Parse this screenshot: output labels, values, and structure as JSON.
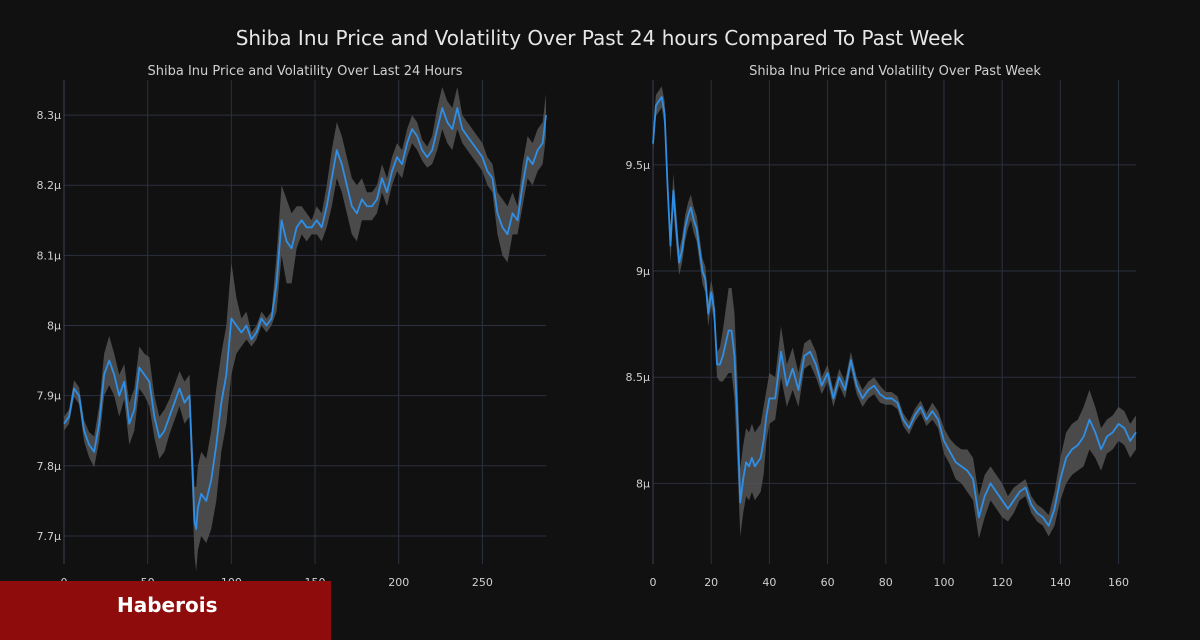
{
  "title": "Shiba Inu Price and Volatility Over Past 24 hours Compared To Past Week",
  "brand": {
    "name": "Haberois"
  },
  "colors": {
    "background": "#111111",
    "line": "#2f8fe6",
    "band": "#555555",
    "grid": "#2c3140",
    "text": "#d0d0d0"
  },
  "chart_data": [
    {
      "type": "line",
      "title": "Shiba Inu Price and Volatility Over Last 24 Hours",
      "xlim": [
        0,
        288
      ],
      "ylim": [
        7.66,
        8.35
      ],
      "xticks": [
        0,
        50,
        100,
        150,
        200,
        250
      ],
      "xtick_labels": [
        "0",
        "50",
        "100",
        "150",
        "200",
        "250"
      ],
      "yticks": [
        7.7,
        7.8,
        7.9,
        8.0,
        8.1,
        8.2,
        8.3
      ],
      "ytick_labels": [
        "7.7µ",
        "7.8µ",
        "7.9µ",
        "8µ",
        "8.1µ",
        "8.2µ",
        "8.3µ"
      ],
      "grid": true,
      "series": [
        {
          "x": [
            0,
            3,
            6,
            9,
            12,
            15,
            18,
            21,
            24,
            27,
            30,
            33,
            36,
            39,
            42,
            45,
            48,
            51,
            54,
            57,
            60,
            63,
            66,
            69,
            72,
            75,
            78,
            79,
            80,
            82,
            85,
            88,
            91,
            94,
            97,
            100,
            103,
            106,
            109,
            112,
            115,
            118,
            121,
            124,
            127,
            130,
            133,
            136,
            139,
            142,
            145,
            148,
            151,
            154,
            157,
            160,
            163,
            166,
            169,
            172,
            175,
            178,
            181,
            184,
            187,
            190,
            193,
            196,
            199,
            202,
            205,
            208,
            211,
            214,
            217,
            220,
            223,
            226,
            229,
            232,
            235,
            238,
            241,
            244,
            247,
            250,
            253,
            256,
            259,
            262,
            265,
            268,
            271,
            274,
            277,
            280,
            283,
            286,
            288
          ],
          "y": [
            7.86,
            7.87,
            7.91,
            7.9,
            7.85,
            7.83,
            7.82,
            7.86,
            7.93,
            7.95,
            7.93,
            7.9,
            7.92,
            7.86,
            7.88,
            7.94,
            7.93,
            7.92,
            7.87,
            7.84,
            7.85,
            7.87,
            7.89,
            7.91,
            7.89,
            7.9,
            7.72,
            7.71,
            7.74,
            7.76,
            7.75,
            7.78,
            7.83,
            7.89,
            7.93,
            8.01,
            8.0,
            7.99,
            8.0,
            7.98,
            7.99,
            8.01,
            8.0,
            8.01,
            8.06,
            8.15,
            8.12,
            8.11,
            8.14,
            8.15,
            8.14,
            8.14,
            8.15,
            8.14,
            8.17,
            8.21,
            8.25,
            8.23,
            8.2,
            8.17,
            8.16,
            8.18,
            8.17,
            8.17,
            8.18,
            8.21,
            8.19,
            8.22,
            8.24,
            8.23,
            8.26,
            8.28,
            8.27,
            8.25,
            8.24,
            8.25,
            8.28,
            8.31,
            8.29,
            8.28,
            8.31,
            8.28,
            8.27,
            8.26,
            8.25,
            8.24,
            8.22,
            8.21,
            8.16,
            8.14,
            8.13,
            8.16,
            8.15,
            8.2,
            8.24,
            8.23,
            8.25,
            8.26,
            8.3
          ],
          "band": [
            0.01,
            0.01,
            0.012,
            0.012,
            0.015,
            0.018,
            0.022,
            0.025,
            0.03,
            0.035,
            0.03,
            0.03,
            0.025,
            0.03,
            0.03,
            0.03,
            0.03,
            0.035,
            0.03,
            0.03,
            0.03,
            0.025,
            0.025,
            0.025,
            0.03,
            0.03,
            0.05,
            0.06,
            0.06,
            0.06,
            0.06,
            0.07,
            0.08,
            0.07,
            0.07,
            0.08,
            0.04,
            0.02,
            0.02,
            0.01,
            0.01,
            0.01,
            0.01,
            0.01,
            0.04,
            0.05,
            0.06,
            0.05,
            0.03,
            0.02,
            0.02,
            0.01,
            0.02,
            0.02,
            0.03,
            0.04,
            0.04,
            0.04,
            0.04,
            0.04,
            0.04,
            0.03,
            0.02,
            0.02,
            0.02,
            0.02,
            0.02,
            0.02,
            0.02,
            0.02,
            0.02,
            0.02,
            0.02,
            0.015,
            0.015,
            0.02,
            0.03,
            0.03,
            0.03,
            0.03,
            0.03,
            0.02,
            0.02,
            0.02,
            0.02,
            0.02,
            0.02,
            0.02,
            0.03,
            0.04,
            0.04,
            0.03,
            0.02,
            0.03,
            0.03,
            0.03,
            0.03,
            0.03,
            0.03
          ]
        }
      ]
    },
    {
      "type": "line",
      "title": "Shiba Inu Price and Volatility Over Past Week",
      "xlim": [
        0,
        166
      ],
      "ylim": [
        7.62,
        9.9
      ],
      "xticks": [
        0,
        20,
        40,
        60,
        80,
        100,
        120,
        140,
        160
      ],
      "xtick_labels": [
        "0",
        "20",
        "40",
        "60",
        "80",
        "100",
        "120",
        "140",
        "160"
      ],
      "yticks": [
        8.0,
        8.5,
        9.0,
        9.5
      ],
      "ytick_labels": [
        "8µ",
        "8.5µ",
        "9µ",
        "9.5µ"
      ],
      "grid": true,
      "series": [
        {
          "x": [
            0,
            1,
            2,
            3,
            4,
            5,
            6,
            7,
            8,
            9,
            10,
            11,
            12,
            13,
            14,
            15,
            16,
            17,
            18,
            19,
            20,
            21,
            22,
            23,
            24,
            25,
            26,
            27,
            28,
            29,
            30,
            31,
            32,
            33,
            34,
            35,
            36,
            37,
            38,
            39,
            40,
            42,
            44,
            46,
            48,
            50,
            52,
            54,
            56,
            58,
            60,
            62,
            64,
            66,
            68,
            70,
            72,
            74,
            76,
            78,
            80,
            82,
            84,
            86,
            88,
            90,
            92,
            94,
            96,
            98,
            100,
            102,
            104,
            106,
            108,
            110,
            112,
            114,
            116,
            118,
            120,
            122,
            124,
            126,
            128,
            130,
            132,
            134,
            136,
            138,
            140,
            142,
            144,
            146,
            148,
            150,
            152,
            154,
            156,
            158,
            160,
            162,
            164,
            166
          ],
          "y": [
            9.6,
            9.78,
            9.8,
            9.82,
            9.74,
            9.4,
            9.12,
            9.38,
            9.2,
            9.04,
            9.1,
            9.2,
            9.26,
            9.3,
            9.24,
            9.2,
            9.1,
            9.0,
            8.96,
            8.8,
            8.9,
            8.82,
            8.56,
            8.56,
            8.6,
            8.66,
            8.72,
            8.72,
            8.6,
            8.3,
            7.91,
            8.02,
            8.1,
            8.08,
            8.12,
            8.08,
            8.1,
            8.12,
            8.2,
            8.32,
            8.4,
            8.4,
            8.62,
            8.46,
            8.54,
            8.44,
            8.6,
            8.62,
            8.56,
            8.46,
            8.52,
            8.4,
            8.5,
            8.44,
            8.58,
            8.46,
            8.4,
            8.44,
            8.46,
            8.42,
            8.4,
            8.4,
            8.38,
            8.3,
            8.26,
            8.32,
            8.36,
            8.3,
            8.34,
            8.3,
            8.2,
            8.15,
            8.1,
            8.08,
            8.06,
            8.02,
            7.84,
            7.94,
            8.0,
            7.96,
            7.92,
            7.88,
            7.92,
            7.96,
            7.98,
            7.9,
            7.86,
            7.84,
            7.8,
            7.88,
            8.02,
            8.12,
            8.16,
            8.18,
            8.22,
            8.3,
            8.24,
            8.16,
            8.22,
            8.24,
            8.28,
            8.26,
            8.2,
            8.24
          ],
          "band": [
            0.05,
            0.05,
            0.05,
            0.05,
            0.06,
            0.06,
            0.08,
            0.08,
            0.08,
            0.06,
            0.06,
            0.06,
            0.06,
            0.06,
            0.06,
            0.06,
            0.06,
            0.06,
            0.06,
            0.06,
            0.06,
            0.06,
            0.06,
            0.08,
            0.12,
            0.16,
            0.2,
            0.2,
            0.2,
            0.2,
            0.16,
            0.16,
            0.16,
            0.16,
            0.16,
            0.16,
            0.16,
            0.16,
            0.16,
            0.12,
            0.12,
            0.1,
            0.12,
            0.1,
            0.1,
            0.08,
            0.06,
            0.06,
            0.06,
            0.04,
            0.04,
            0.04,
            0.04,
            0.04,
            0.04,
            0.04,
            0.04,
            0.04,
            0.04,
            0.04,
            0.03,
            0.03,
            0.03,
            0.03,
            0.03,
            0.03,
            0.03,
            0.03,
            0.04,
            0.04,
            0.06,
            0.06,
            0.08,
            0.08,
            0.1,
            0.1,
            0.1,
            0.1,
            0.08,
            0.08,
            0.08,
            0.06,
            0.06,
            0.04,
            0.04,
            0.04,
            0.04,
            0.04,
            0.05,
            0.08,
            0.1,
            0.12,
            0.12,
            0.12,
            0.14,
            0.14,
            0.12,
            0.1,
            0.08,
            0.08,
            0.08,
            0.08,
            0.08,
            0.08
          ]
        }
      ]
    }
  ]
}
